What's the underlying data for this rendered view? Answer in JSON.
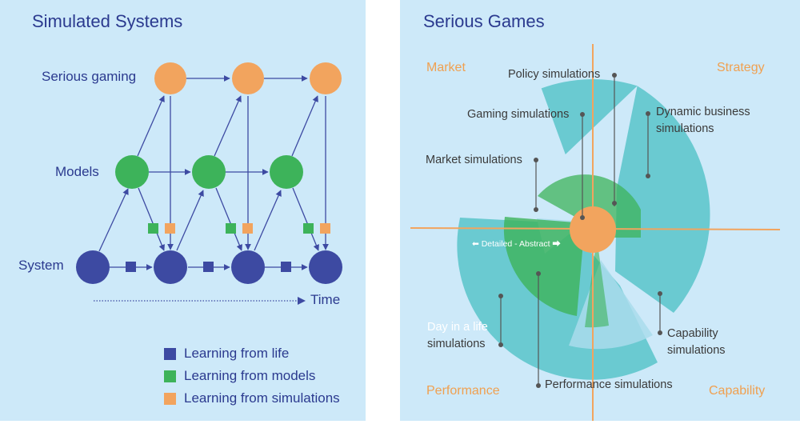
{
  "left": {
    "title": "Simulated Systems",
    "rows": {
      "serious_gaming": "Serious gaming",
      "models": "Models",
      "system": "System"
    },
    "time_label": "Time",
    "legend": [
      {
        "label": "Learning from life",
        "color": "#3d4aa2"
      },
      {
        "label": "Learning from models",
        "color": "#3db35a"
      },
      {
        "label": "Learning from simulations",
        "color": "#f2a45e"
      }
    ]
  },
  "right": {
    "title": "Serious Games",
    "quadrants": {
      "market": "Market",
      "strategy": "Strategy",
      "performance": "Performance",
      "capability": "Capability"
    },
    "axis_label": "⬅ Detailed - Abstract ⮕",
    "callouts": {
      "policy": "Policy simulations",
      "gaming": "Gaming simulations",
      "market": "Market simulations",
      "dynamic_line1": "Dynamic business",
      "dynamic_line2": "simulations",
      "day_line1": "Day in a life",
      "day_line2": "simulations",
      "capability_line1": "Capability",
      "capability_line2": "simulations",
      "performance": "Performance simulations"
    }
  },
  "colors": {
    "background": "#cde9f9",
    "dark_blue": "#3d4aa2",
    "green": "#3db35a",
    "orange": "#f2a45e",
    "teal": "#5fc7cc",
    "text_blue": "#2b3a8f",
    "quadrant_orange": "#f0a050"
  }
}
